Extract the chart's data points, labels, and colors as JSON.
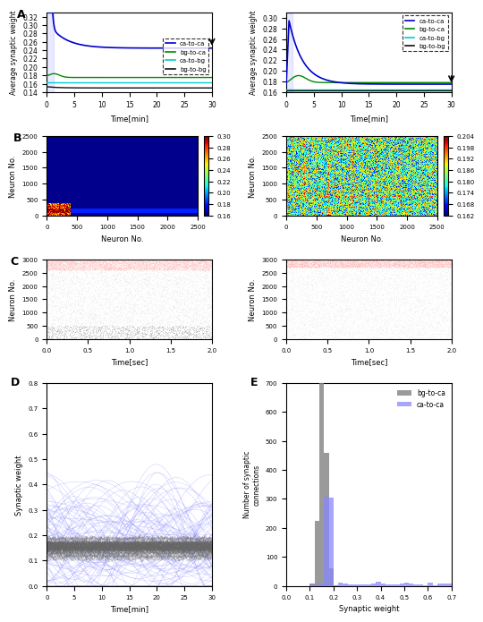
{
  "panel_A_left": {
    "ylim": [
      0.14,
      0.33
    ],
    "yticks": [
      0.14,
      0.16,
      0.18,
      0.2,
      0.22,
      0.24,
      0.26,
      0.28,
      0.3,
      0.32
    ],
    "xlim": [
      0,
      30
    ],
    "xticks": [
      0,
      5,
      10,
      15,
      20,
      25,
      30
    ],
    "ca_ca_peak": 0.31,
    "ca_ca_final": 0.245,
    "ca_ca_color": "#0000cc",
    "bg_ca_color": "#008800",
    "ca_bg_color": "#00cccc",
    "bg_bg_color": "#111111",
    "ylabel": "Average synaptic weight",
    "xlabel": "Time[min]",
    "bg_ca_final": 0.175,
    "ca_bg_final": 0.162,
    "bg_bg_final": 0.15
  },
  "panel_A_right": {
    "ylim": [
      0.16,
      0.31
    ],
    "yticks": [
      0.16,
      0.18,
      0.2,
      0.22,
      0.24,
      0.26,
      0.28,
      0.3
    ],
    "xlim": [
      0,
      30
    ],
    "xticks": [
      0,
      5,
      10,
      15,
      20,
      25,
      30
    ],
    "ca_ca_peak": 0.295,
    "ca_ca_final": 0.175,
    "bg_ca_final": 0.178,
    "ca_bg_final": 0.165,
    "bg_bg_final": 0.163,
    "ylabel": "Average synaptic weight",
    "xlabel": "Time[min]"
  },
  "panel_B_left": {
    "xlabel": "Neuron No.",
    "ylabel": "Neuron No.",
    "xlim": [
      0,
      2500
    ],
    "ylim": [
      0,
      2500
    ],
    "xticks": [
      0,
      500,
      1000,
      1500,
      2000,
      2500
    ],
    "yticks": [
      0,
      500,
      1000,
      1500,
      2000,
      2500
    ],
    "cmap_min": 0.16,
    "cmap_max": 0.3,
    "cticks": [
      0.16,
      0.18,
      0.2,
      0.22,
      0.24,
      0.26,
      0.28,
      0.3
    ]
  },
  "panel_B_right": {
    "xlabel": "Neuron No.",
    "ylabel": "Neuron No.",
    "xlim": [
      0,
      2500
    ],
    "ylim": [
      0,
      2500
    ],
    "xticks": [
      0,
      500,
      1000,
      1500,
      2000,
      2500
    ],
    "yticks": [
      0,
      500,
      1000,
      1500,
      2000,
      2500
    ],
    "cmap_min": 0.162,
    "cmap_max": 0.204,
    "cticks": [
      0.162,
      0.168,
      0.174,
      0.18,
      0.186,
      0.192,
      0.198,
      0.204
    ]
  },
  "panel_C": {
    "ylim": [
      0,
      3000
    ],
    "xlim": [
      0.0,
      2.0
    ],
    "xticks": [
      0.0,
      0.5,
      1.0,
      1.5,
      2.0
    ],
    "yticks": [
      0,
      500,
      1000,
      1500,
      2000,
      2500,
      3000
    ],
    "ylabel": "Neuron No.",
    "xlabel": "Time[sec]",
    "excit_color": "#ffaaaa",
    "inhib_color": "#aaaaaa",
    "ca_thresh": 2600
  },
  "panel_D": {
    "ylim": [
      0.0,
      0.8
    ],
    "xlim": [
      0,
      30
    ],
    "xticks": [
      0,
      5,
      10,
      15,
      20,
      25,
      30
    ],
    "yticks": [
      0.0,
      0.1,
      0.2,
      0.3,
      0.4,
      0.5,
      0.6,
      0.7,
      0.8
    ],
    "ylabel": "Synaptic weight",
    "xlabel": "Time[min]",
    "ca_color": "#8888ff",
    "bg_color": "#888888"
  },
  "panel_E": {
    "xlim": [
      0.0,
      0.7
    ],
    "ylim": [
      0,
      700
    ],
    "xticks": [
      0.0,
      0.1,
      0.2,
      0.3,
      0.4,
      0.5,
      0.6,
      0.7
    ],
    "yticks": [
      0,
      100,
      200,
      300,
      400,
      500,
      600,
      700
    ],
    "ylabel": "Number of synaptic\nconnections",
    "xlabel": "Synaptic weight",
    "ca_color": "#8888ff",
    "bg_color": "#888888",
    "ca_label": "ca-to-ca",
    "bg_label": "bg-to-ca"
  },
  "legend_labels": [
    "ca-to-ca",
    "bg-to-ca",
    "ca-to-bg",
    "bg-to-bg"
  ],
  "legend_colors": [
    "#0000cc",
    "#008800",
    "#00cccc",
    "#111111"
  ]
}
